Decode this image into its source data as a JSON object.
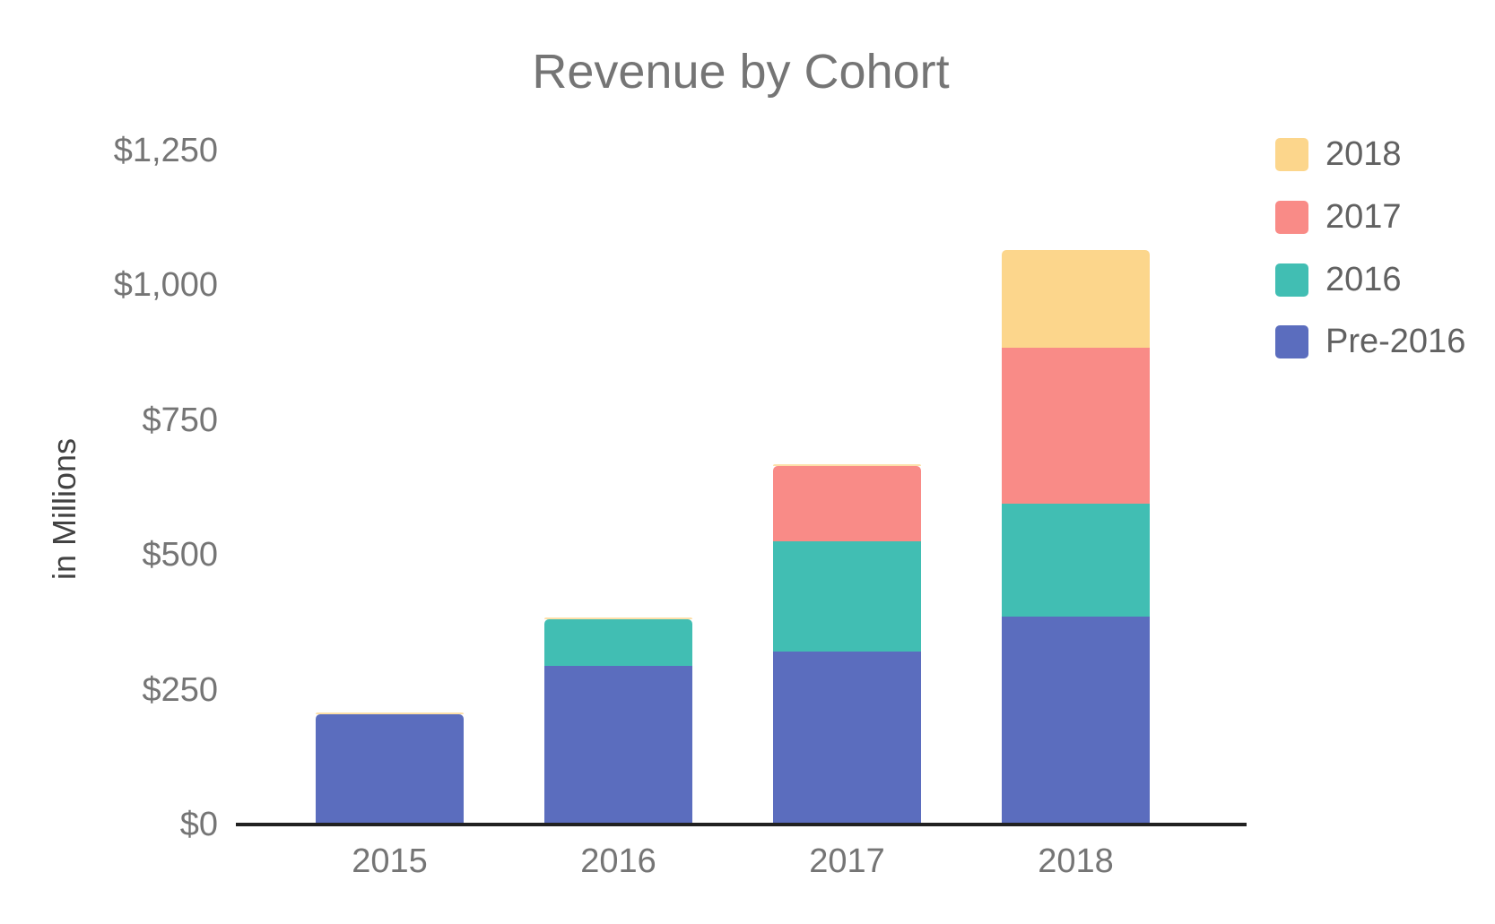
{
  "title": "Revenue by Cohort",
  "y_axis": {
    "title": "in Millions",
    "tick_labels": [
      "$0",
      "$250",
      "$500",
      "$750",
      "$1,000",
      "$1,250"
    ],
    "tick_values": [
      0,
      250,
      500,
      750,
      1000,
      1250
    ]
  },
  "x_axis": {
    "tick_labels": [
      "2015",
      "2016",
      "2017",
      "2018"
    ]
  },
  "legend": {
    "position": "right",
    "items": [
      {
        "label": "2018",
        "color": "#FCD68C"
      },
      {
        "label": "2017",
        "color": "#F98B87"
      },
      {
        "label": "2016",
        "color": "#41BEB3"
      },
      {
        "label": "Pre-2016",
        "color": "#5B6DBE"
      }
    ]
  },
  "colors": {
    "title_text": "#757575",
    "tick_text": "#757575",
    "legend_text": "#616161",
    "y_axis_title_text": "#424242",
    "axis_line": "#212121"
  },
  "chart_data": {
    "type": "bar",
    "stacked": true,
    "title": "Revenue by Cohort",
    "xlabel": "",
    "ylabel": "in Millions",
    "ylim": [
      0,
      1250
    ],
    "grid": false,
    "legend_position": "right",
    "categories": [
      "2015",
      "2016",
      "2017",
      "2018"
    ],
    "series": [
      {
        "name": "Pre-2016",
        "color": "#5B6DBE",
        "values": [
          205,
          295,
          320,
          385
        ]
      },
      {
        "name": "2016",
        "color": "#41BEB3",
        "values": [
          0,
          85,
          205,
          210
        ]
      },
      {
        "name": "2017",
        "color": "#F98B87",
        "values": [
          0,
          0,
          140,
          290
        ]
      },
      {
        "name": "2018",
        "color": "#FCD68C",
        "values": [
          0,
          0,
          0,
          180
        ]
      }
    ],
    "stack_totals": [
      205,
      380,
      665,
      1065
    ],
    "units": "USD millions"
  }
}
